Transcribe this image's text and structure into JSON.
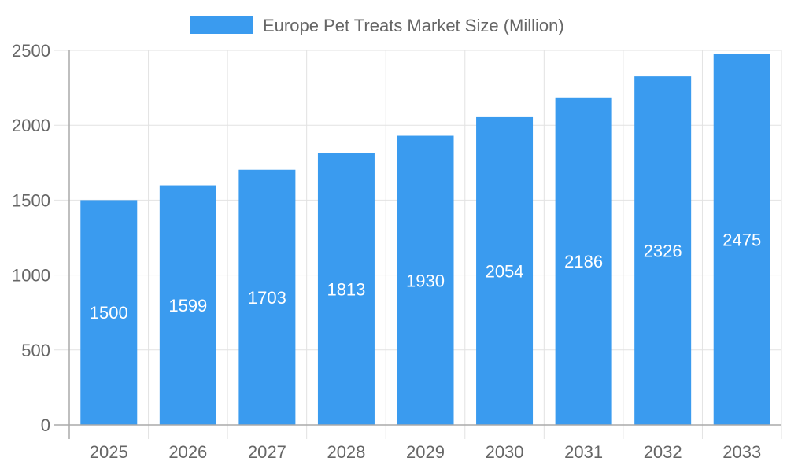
{
  "chart_data": {
    "type": "bar",
    "title": "",
    "xlabel": "",
    "ylabel": "",
    "categories": [
      "2025",
      "2026",
      "2027",
      "2028",
      "2029",
      "2030",
      "2031",
      "2032",
      "2033"
    ],
    "series": [
      {
        "name": "Europe Pet Treats Market Size (Million)",
        "values": [
          1500,
          1599,
          1703,
          1813,
          1930,
          2054,
          2186,
          2326,
          2475
        ],
        "color": "#3a9bef"
      }
    ],
    "ylim": [
      0,
      2500
    ],
    "yticks": [
      "0",
      "500",
      "1000",
      "1500",
      "2000",
      "2500"
    ],
    "grid": true,
    "legend": "top-center",
    "data_labels": "inside-center"
  }
}
